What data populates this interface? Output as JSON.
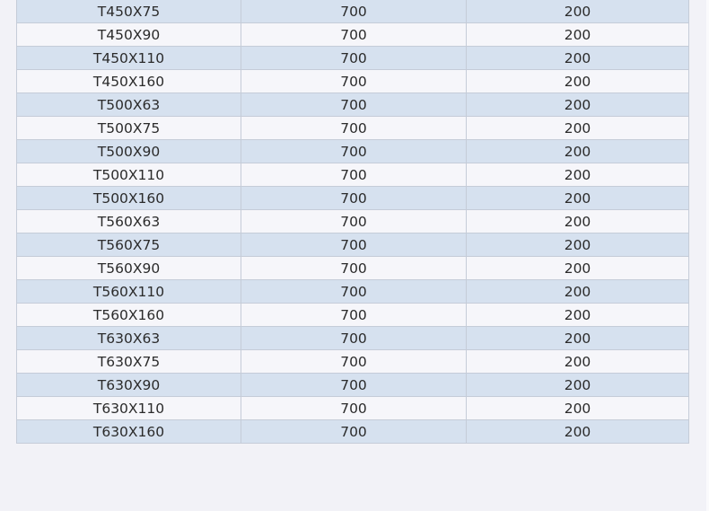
{
  "table": {
    "rows": [
      [
        "T450X75",
        "700",
        "200"
      ],
      [
        "T450X90",
        "700",
        "200"
      ],
      [
        "T450X110",
        "700",
        "200"
      ],
      [
        "T450X160",
        "700",
        "200"
      ],
      [
        "T500X63",
        "700",
        "200"
      ],
      [
        "T500X75",
        "700",
        "200"
      ],
      [
        "T500X90",
        "700",
        "200"
      ],
      [
        "T500X110",
        "700",
        "200"
      ],
      [
        "T500X160",
        "700",
        "200"
      ],
      [
        "T560X63",
        "700",
        "200"
      ],
      [
        "T560X75",
        "700",
        "200"
      ],
      [
        "T560X90",
        "700",
        "200"
      ],
      [
        "T560X110",
        "700",
        "200"
      ],
      [
        "T560X160",
        "700",
        "200"
      ],
      [
        "T630X63",
        "700",
        "200"
      ],
      [
        "T630X75",
        "700",
        "200"
      ],
      [
        "T630X90",
        "700",
        "200"
      ],
      [
        "T630X110",
        "700",
        "200"
      ],
      [
        "T630X160",
        "700",
        "200"
      ]
    ],
    "colors": {
      "row_odd": "#d6e1ef",
      "row_even": "#f6f6fa",
      "border": "#c5ccd8"
    }
  }
}
